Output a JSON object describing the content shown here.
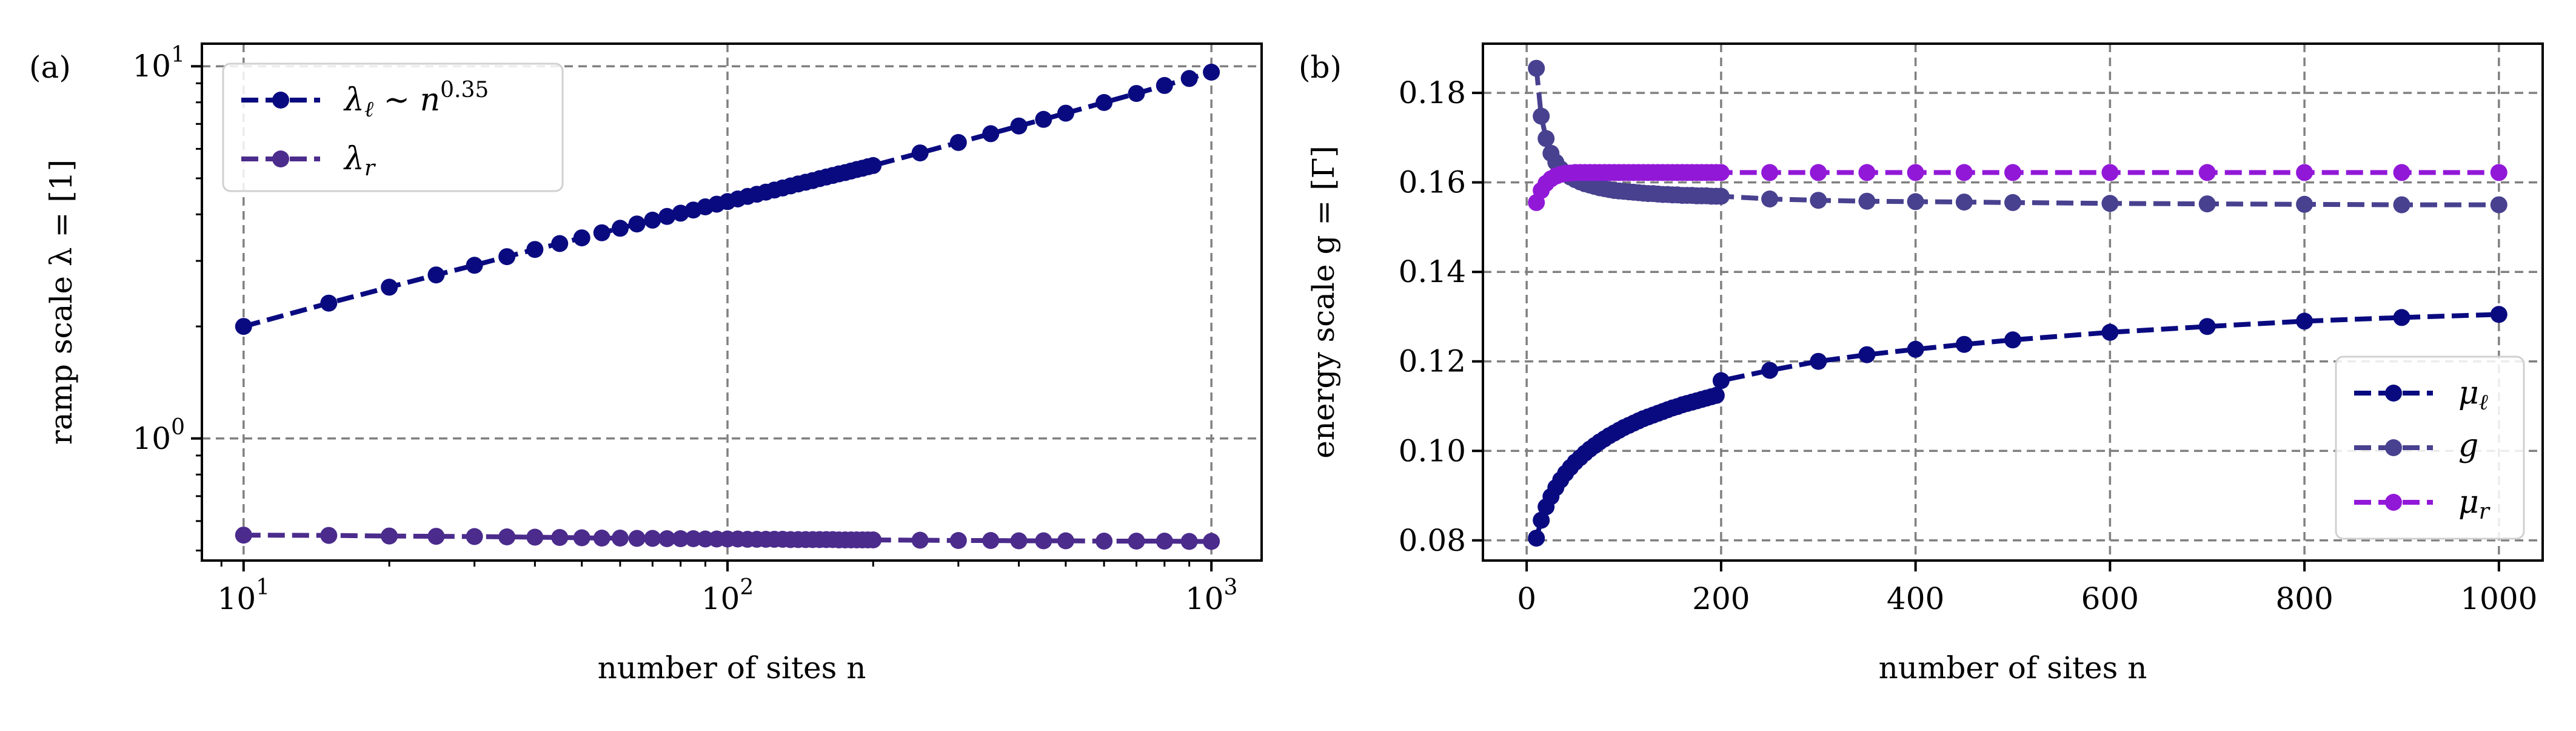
{
  "colors": {
    "navy": "#0a0a80",
    "indigo": "#4b2b8c",
    "slate_blue": "#48418f",
    "violet": "#9218d8",
    "grid": "#808080"
  },
  "chart_data": [
    {
      "type": "line",
      "panel_label": "(a)",
      "xlabel": "number of sites n",
      "ylabel": "ramp scale λ = [1]",
      "xscale": "log",
      "yscale": "log",
      "xlim": [
        8.2,
        1270
      ],
      "ylim": [
        0.47,
        11.5
      ],
      "xticks": [
        {
          "value": 10,
          "base": "10",
          "exp": "1"
        },
        {
          "value": 100,
          "base": "10",
          "exp": "2"
        },
        {
          "value": 1000,
          "base": "10",
          "exp": "3"
        }
      ],
      "yticks": [
        {
          "value": 1,
          "base": "10",
          "exp": "0"
        },
        {
          "value": 10,
          "base": "10",
          "exp": "1"
        }
      ],
      "grid": true,
      "legend_position": "top-left",
      "series": [
        {
          "name": "λℓ ∼ n^0.35",
          "legend_main": "λ",
          "legend_sub": "ℓ",
          "legend_rest": " ∼ n",
          "legend_sup": "0.35",
          "color": "#0a0a80",
          "style": "dashed with circle markers",
          "x": [
            10,
            15,
            20,
            25,
            30,
            35,
            40,
            45,
            50,
            55,
            60,
            65,
            70,
            75,
            80,
            85,
            90,
            95,
            100,
            105,
            110,
            115,
            120,
            125,
            130,
            135,
            140,
            145,
            150,
            155,
            160,
            165,
            170,
            175,
            180,
            185,
            190,
            195,
            200,
            250,
            300,
            350,
            400,
            450,
            500,
            600,
            700,
            800,
            900,
            1000
          ],
          "y": [
            2.0,
            2.31,
            2.55,
            2.75,
            2.92,
            3.08,
            3.22,
            3.34,
            3.46,
            3.57,
            3.67,
            3.77,
            3.86,
            3.95,
            4.03,
            4.11,
            4.19,
            4.26,
            4.33,
            4.4,
            4.47,
            4.53,
            4.59,
            4.65,
            4.71,
            4.77,
            4.83,
            4.88,
            4.93,
            4.99,
            5.04,
            5.09,
            5.14,
            5.18,
            5.23,
            5.28,
            5.32,
            5.37,
            5.41,
            5.85,
            6.24,
            6.59,
            6.91,
            7.2,
            7.48,
            7.99,
            8.45,
            8.88,
            9.27,
            9.64
          ]
        },
        {
          "name": "λr",
          "legend_main": "λ",
          "legend_sub": "r",
          "color": "#4b2b8c",
          "style": "dashed with circle markers",
          "x": [
            10,
            15,
            20,
            25,
            30,
            35,
            40,
            45,
            50,
            55,
            60,
            65,
            70,
            75,
            80,
            85,
            90,
            95,
            100,
            105,
            110,
            115,
            120,
            125,
            130,
            135,
            140,
            145,
            150,
            155,
            160,
            165,
            170,
            175,
            180,
            185,
            190,
            195,
            200,
            250,
            300,
            350,
            400,
            450,
            500,
            600,
            700,
            800,
            900,
            1000
          ],
          "y": [
            0.55,
            0.549,
            0.547,
            0.546,
            0.545,
            0.544,
            0.543,
            0.542,
            0.541,
            0.54,
            0.54,
            0.539,
            0.539,
            0.538,
            0.538,
            0.538,
            0.537,
            0.537,
            0.537,
            0.537,
            0.536,
            0.536,
            0.536,
            0.536,
            0.536,
            0.535,
            0.535,
            0.535,
            0.535,
            0.535,
            0.535,
            0.535,
            0.534,
            0.534,
            0.534,
            0.534,
            0.534,
            0.534,
            0.534,
            0.533,
            0.532,
            0.532,
            0.531,
            0.531,
            0.531,
            0.53,
            0.53,
            0.53,
            0.529,
            0.529
          ]
        }
      ]
    },
    {
      "type": "line",
      "panel_label": "(b)",
      "xlabel": "number of sites n",
      "ylabel": "energy scale g = [Γ]",
      "xscale": "linear",
      "yscale": "linear",
      "xlim": [
        -45,
        1045
      ],
      "ylim": [
        0.0755,
        0.191
      ],
      "xticks": [
        {
          "value": 0,
          "label": "0"
        },
        {
          "value": 200,
          "label": "200"
        },
        {
          "value": 400,
          "label": "400"
        },
        {
          "value": 600,
          "label": "600"
        },
        {
          "value": 800,
          "label": "800"
        },
        {
          "value": 1000,
          "label": "1000"
        }
      ],
      "yticks": [
        {
          "value": 0.08,
          "label": "0.08"
        },
        {
          "value": 0.1,
          "label": "0.10"
        },
        {
          "value": 0.12,
          "label": "0.12"
        },
        {
          "value": 0.14,
          "label": "0.14"
        },
        {
          "value": 0.16,
          "label": "0.16"
        },
        {
          "value": 0.18,
          "label": "0.18"
        }
      ],
      "grid": true,
      "legend_position": "bottom-right",
      "series": [
        {
          "name": "μℓ",
          "legend_main": "μ",
          "legend_sub": "ℓ",
          "color": "#0a0a80",
          "style": "dashed with circle markers",
          "x": [
            10,
            15,
            20,
            25,
            30,
            35,
            40,
            45,
            50,
            55,
            60,
            65,
            70,
            75,
            80,
            85,
            90,
            95,
            100,
            105,
            110,
            115,
            120,
            125,
            130,
            135,
            140,
            145,
            150,
            155,
            160,
            165,
            170,
            175,
            180,
            185,
            190,
            195,
            200,
            250,
            300,
            350,
            400,
            450,
            500,
            600,
            700,
            800,
            900,
            1000
          ],
          "y": [
            0.0805,
            0.0845,
            0.0875,
            0.0898,
            0.0918,
            0.0935,
            0.095,
            0.0963,
            0.0975,
            0.0985,
            0.0995,
            0.1004,
            0.1012,
            0.102,
            0.1027,
            0.1034,
            0.104,
            0.1046,
            0.1052,
            0.1057,
            0.1062,
            0.1067,
            0.1072,
            0.1076,
            0.108,
            0.1084,
            0.1088,
            0.1092,
            0.1096,
            0.1099,
            0.1103,
            0.1106,
            0.1109,
            0.1112,
            0.1115,
            0.1118,
            0.1121,
            0.1124,
            0.1157,
            0.118,
            0.12,
            0.1215,
            0.1227,
            0.1238,
            0.1248,
            0.1265,
            0.1278,
            0.129,
            0.1298,
            0.1305
          ]
        },
        {
          "name": "g",
          "legend_main": "g",
          "color": "#48418f",
          "style": "dashed with circle markers",
          "x": [
            10,
            15,
            20,
            25,
            30,
            35,
            40,
            45,
            50,
            55,
            60,
            65,
            70,
            75,
            80,
            85,
            90,
            95,
            100,
            105,
            110,
            115,
            120,
            125,
            130,
            135,
            140,
            145,
            150,
            155,
            160,
            165,
            170,
            175,
            180,
            185,
            190,
            195,
            200,
            250,
            300,
            350,
            400,
            450,
            500,
            600,
            700,
            800,
            900,
            1000
          ],
          "y": [
            0.1855,
            0.1748,
            0.1698,
            0.1665,
            0.1645,
            0.163,
            0.162,
            0.1612,
            0.1606,
            0.1601,
            0.1597,
            0.1594,
            0.1591,
            0.1588,
            0.1586,
            0.1584,
            0.1582,
            0.1581,
            0.158,
            0.1579,
            0.1578,
            0.1577,
            0.1576,
            0.1575,
            0.1575,
            0.1574,
            0.1573,
            0.1573,
            0.1572,
            0.1572,
            0.1571,
            0.1571,
            0.1571,
            0.157,
            0.157,
            0.157,
            0.1569,
            0.1569,
            0.1569,
            0.1563,
            0.156,
            0.1558,
            0.1557,
            0.1556,
            0.1555,
            0.1553,
            0.1552,
            0.1551,
            0.155,
            0.155
          ]
        },
        {
          "name": "μr",
          "legend_main": "μ",
          "legend_sub": "r",
          "color": "#9218d8",
          "style": "dashed with circle markers",
          "x": [
            10,
            15,
            20,
            25,
            30,
            35,
            40,
            45,
            50,
            55,
            60,
            65,
            70,
            75,
            80,
            85,
            90,
            95,
            100,
            105,
            110,
            115,
            120,
            125,
            130,
            135,
            140,
            145,
            150,
            155,
            160,
            165,
            170,
            175,
            180,
            185,
            190,
            195,
            200,
            250,
            300,
            350,
            400,
            450,
            500,
            600,
            700,
            800,
            900,
            1000
          ],
          "y": [
            0.1555,
            0.1582,
            0.1598,
            0.1608,
            0.1614,
            0.1618,
            0.162,
            0.1621,
            0.1622,
            0.1622,
            0.1622,
            0.1622,
            0.1622,
            0.1622,
            0.1622,
            0.1622,
            0.1622,
            0.1622,
            0.1622,
            0.1622,
            0.1622,
            0.1622,
            0.1622,
            0.1622,
            0.1622,
            0.1622,
            0.1622,
            0.1622,
            0.1622,
            0.1622,
            0.1622,
            0.1622,
            0.1622,
            0.1622,
            0.1622,
            0.1622,
            0.1622,
            0.1622,
            0.1622,
            0.1622,
            0.1622,
            0.1622,
            0.1622,
            0.1622,
            0.1622,
            0.1622,
            0.1622,
            0.1622,
            0.1622,
            0.1622
          ]
        }
      ]
    }
  ]
}
